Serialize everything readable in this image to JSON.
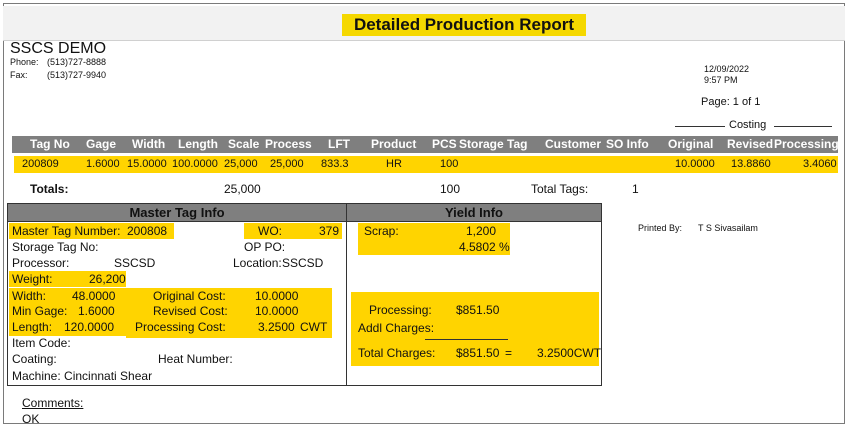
{
  "report": {
    "title": "Detailed Production Report",
    "company": "SSCS DEMO",
    "phone_label": "Phone:",
    "phone": "(513)727-8888",
    "fax_label": "Fax:",
    "fax": "(513)727-9940",
    "date": "12/09/2022",
    "time": "9:57 PM",
    "page": "Page: 1 of 1",
    "costing_label": "Costing"
  },
  "table": {
    "headers": [
      "Tag No",
      "Gage",
      "Width",
      "Length",
      "Scale",
      "Process",
      "LFT",
      "Product",
      "PCS",
      "Storage Tag",
      "Customer",
      "SO Info",
      "Original",
      "Revised",
      "Processing"
    ],
    "row": [
      "200809",
      "1.6000",
      "15.0000",
      "100.0000",
      "25,000",
      "25,000",
      "833.3",
      "HR",
      "100",
      "",
      "",
      "",
      "10.0000",
      "13.8860",
      "3.4060"
    ],
    "totals_label": "Totals:",
    "totals_scale": "25,000",
    "totals_pcs": "100",
    "total_tags_label": "Total Tags:",
    "total_tags": "1"
  },
  "master": {
    "heading": "Master Tag Info",
    "master_tag_label": "Master Tag Number:",
    "master_tag": "200808",
    "wo_label": "WO:",
    "wo": "379",
    "storage_tag_label": "Storage Tag No:",
    "op_po_label": "OP PO:",
    "processor_label": "Processor:",
    "processor": "SSCSD",
    "location_label": "Location:",
    "location": "SSCSD",
    "weight_label": "Weight:",
    "weight": "26,200",
    "width_label": "Width:",
    "width": "48.0000",
    "min_gage_label": "Min Gage:",
    "min_gage": "1.6000",
    "length_label": "Length:",
    "length": "120.0000",
    "orig_cost_label": "Original Cost:",
    "orig_cost": "10.0000",
    "rev_cost_label": "Revised Cost:",
    "rev_cost": "10.0000",
    "proc_cost_label": "Processing Cost:",
    "proc_cost": "3.2500",
    "proc_cost_unit": "CWT",
    "item_code_label": "Item Code:",
    "coating_label": "Coating:",
    "heat_label": "Heat Number:",
    "machine": "Machine: Cincinnati Shear"
  },
  "yield": {
    "heading": "Yield Info",
    "scrap_label": "Scrap:",
    "scrap": "1,200",
    "scrap_pct": "4.5802 %",
    "processing_label": "Processing:",
    "processing": "$851.50",
    "addl_label": "Addl Charges:",
    "total_label": "Total Charges:",
    "total": "$851.50",
    "eq": "=",
    "total_cwt": "3.2500CWT"
  },
  "printed": {
    "label": "Printed By:",
    "name": "T S Sivasailam"
  },
  "comments": {
    "label": "Comments:",
    "text": "OK"
  }
}
